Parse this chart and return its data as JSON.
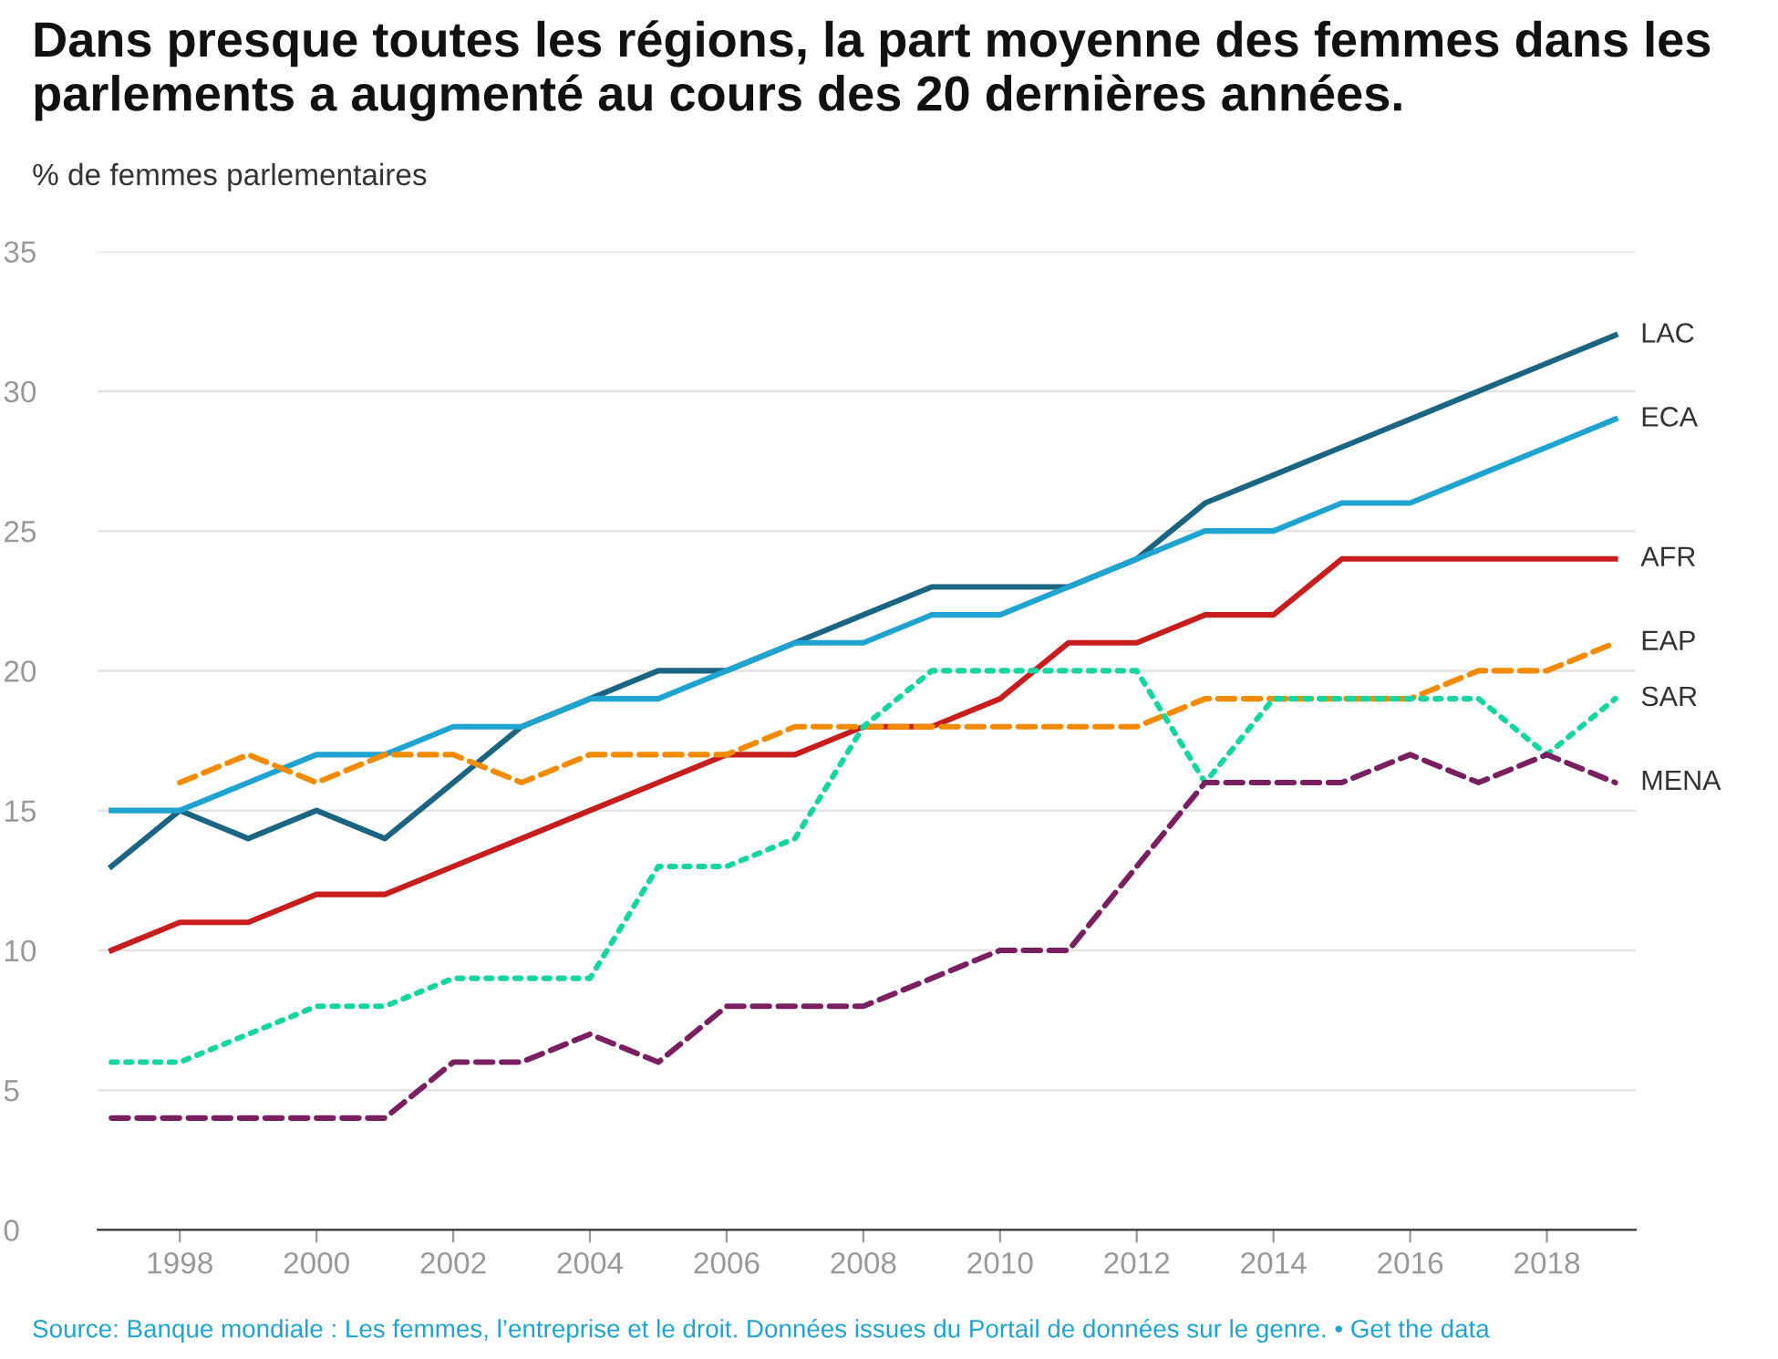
{
  "chart_data": {
    "type": "line",
    "title": "Dans presque toutes les régions, la part moyenne des femmes dans les\nparlements a augmenté au cours des 20 dernières années.",
    "subtitle": "% de femmes parlementaires",
    "x": [
      1997,
      1998,
      1999,
      2000,
      2001,
      2002,
      2003,
      2004,
      2005,
      2006,
      2007,
      2008,
      2009,
      2010,
      2011,
      2012,
      2013,
      2014,
      2015,
      2016,
      2017,
      2018,
      2019
    ],
    "series": [
      {
        "name": "LAC",
        "color": "#1b6583",
        "line_style": "solid",
        "values": [
          13,
          15,
          14,
          15,
          14,
          16,
          18,
          19,
          20,
          20,
          21,
          22,
          23,
          23,
          23,
          24,
          26,
          27,
          28,
          29,
          30,
          31,
          32
        ]
      },
      {
        "name": "ECA",
        "color": "#1fa3d1",
        "line_style": "solid",
        "values": [
          15,
          15,
          16,
          17,
          17,
          18,
          18,
          19,
          19,
          20,
          21,
          21,
          22,
          22,
          23,
          24,
          25,
          25,
          26,
          26,
          27,
          28,
          29
        ]
      },
      {
        "name": "AFR",
        "color": "#c71e1d",
        "line_style": "solid",
        "values": [
          10,
          11,
          11,
          12,
          12,
          13,
          14,
          15,
          16,
          17,
          17,
          18,
          18,
          19,
          21,
          21,
          22,
          22,
          24,
          24,
          24,
          24,
          24
        ]
      },
      {
        "name": "EAP",
        "color": "#f28b00",
        "line_style": "dashed",
        "values": [
          null,
          16,
          17,
          16,
          17,
          17,
          16,
          17,
          17,
          17,
          18,
          18,
          18,
          18,
          18,
          18,
          19,
          19,
          19,
          19,
          20,
          20,
          21
        ]
      },
      {
        "name": "SAR",
        "color": "#15d6a0",
        "line_style": "dotted",
        "values": [
          6,
          6,
          7,
          8,
          8,
          9,
          9,
          9,
          13,
          13,
          14,
          18,
          20,
          20,
          20,
          20,
          16,
          19,
          19,
          19,
          19,
          17,
          19
        ]
      },
      {
        "name": "MENA",
        "color": "#7a2060",
        "line_style": "dashed",
        "values": [
          4,
          4,
          4,
          4,
          4,
          6,
          6,
          7,
          6,
          8,
          8,
          8,
          9,
          10,
          10,
          13,
          16,
          16,
          16,
          17,
          16,
          17,
          16
        ]
      }
    ],
    "xlim": [
      1996.8,
      2019.3
    ],
    "xticks": [
      1998,
      2000,
      2002,
      2004,
      2006,
      2008,
      2010,
      2012,
      2014,
      2016,
      2018
    ],
    "ylim": [
      0,
      35
    ],
    "yticks": [
      0,
      5,
      10,
      15,
      20,
      25,
      30,
      35
    ],
    "grid": "y",
    "legend": false,
    "marker": "none",
    "annotations": [
      "Source: Banque mondiale : Les femmes, l’entreprise et le droit. Données issues du Portail de données sur le genre. • Get the data"
    ]
  }
}
